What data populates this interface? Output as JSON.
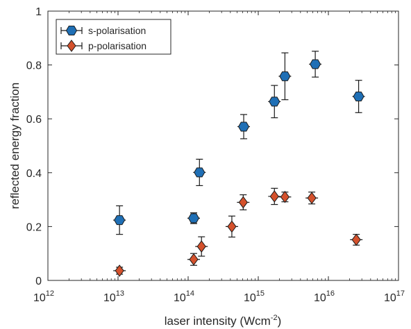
{
  "chart_data": {
    "type": "scatter",
    "title": "",
    "xlabel": "laser intensity (Wcm",
    "xlabel_sup": "-2",
    "xlabel_close": ")",
    "ylabel": "reflected energy fraction",
    "xscale": "log",
    "xlim": [
      1000000000000.0,
      1e+17
    ],
    "ylim": [
      0,
      1
    ],
    "grid": false,
    "legend_position": "top-left",
    "x_tick_base": "10",
    "x_tick_exponents": [
      "12",
      "13",
      "14",
      "15",
      "16",
      "17"
    ],
    "y_ticks": [
      "0",
      "0.2",
      "0.4",
      "0.6",
      "0.8",
      "1"
    ],
    "series": [
      {
        "name": "s-polarisation",
        "marker": "hexagon",
        "color": "#1f6fb5",
        "x": [
          10500000000000.0,
          120000000000000.0,
          145000000000000.0,
          620000000000000.0,
          1700000000000000.0,
          2400000000000000.0,
          6500000000000000.0,
          2.7e+16
        ],
        "y": [
          0.224,
          0.231,
          0.401,
          0.571,
          0.664,
          0.758,
          0.803,
          0.683
        ],
        "err": [
          0.053,
          0.02,
          0.049,
          0.045,
          0.06,
          0.087,
          0.048,
          0.06
        ]
      },
      {
        "name": "p-polarisation",
        "marker": "diamond",
        "color": "#d4512c",
        "x": [
          10500000000000.0,
          120000000000000.0,
          155000000000000.0,
          420000000000000.0,
          610000000000000.0,
          1700000000000000.0,
          2400000000000000.0,
          5800000000000000.0,
          2.5e+16
        ],
        "y": [
          0.036,
          0.078,
          0.126,
          0.2,
          0.29,
          0.312,
          0.31,
          0.306,
          0.151
        ],
        "err": [
          0.013,
          0.022,
          0.036,
          0.039,
          0.028,
          0.03,
          0.018,
          0.022,
          0.02
        ]
      }
    ]
  }
}
